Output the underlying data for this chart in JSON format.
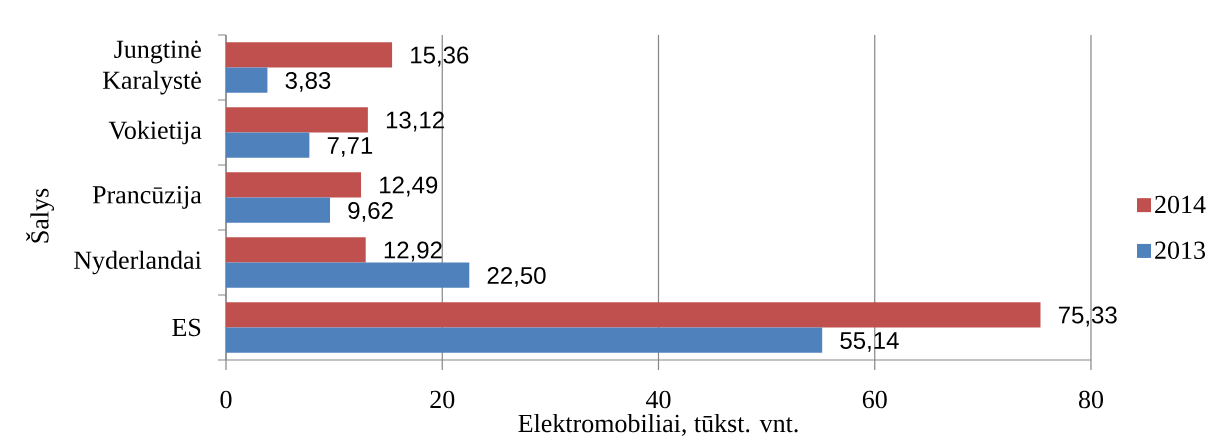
{
  "chart_data": {
    "type": "bar",
    "orientation": "horizontal",
    "xlabel": "Elektromobiliai, tūkst. vnt.",
    "ylabel": "Šalys",
    "categories": [
      "Jungtinė Karalystė",
      "Vokietija",
      "Prancūzija",
      "Nyderlandai",
      "ES"
    ],
    "series": [
      {
        "name": "2014",
        "color": "#c0504d",
        "values": [
          15.36,
          13.12,
          12.49,
          12.92,
          75.33
        ],
        "value_labels": [
          "15,36",
          "13,12",
          "12,49",
          "12,92",
          "75,33"
        ]
      },
      {
        "name": "2013",
        "color": "#4f81bd",
        "values": [
          3.83,
          7.71,
          9.62,
          22.5,
          55.14
        ],
        "value_labels": [
          "3,83",
          "7,71",
          "9,62",
          "22,50",
          "55,14"
        ]
      }
    ],
    "xlim": [
      0,
      80
    ],
    "xticks": [
      0,
      20,
      40,
      60,
      80
    ],
    "grid": "x",
    "legend": "right"
  }
}
